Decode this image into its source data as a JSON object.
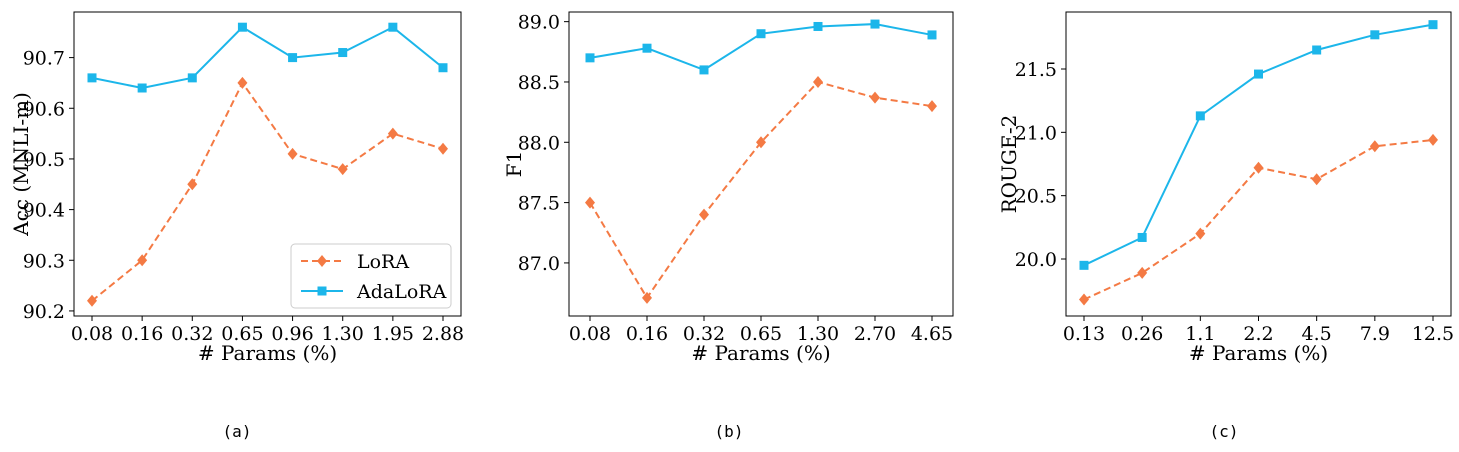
{
  "colors": {
    "lora": "#f47a44",
    "adalora": "#1cb6ea",
    "axis": "#000000"
  },
  "chart_data": [
    {
      "type": "line",
      "caption": "(a)",
      "xlabel": "# Params (%)",
      "ylabel": "Acc (MNLI-m)",
      "categories": [
        "0.08",
        "0.16",
        "0.32",
        "0.65",
        "0.96",
        "1.30",
        "1.95",
        "2.88"
      ],
      "ylim": [
        90.19,
        90.79
      ],
      "yticks": [
        90.2,
        90.3,
        90.4,
        90.5,
        90.6,
        90.7
      ],
      "ytick_labels": [
        "90.2",
        "90.3",
        "90.4",
        "90.5",
        "90.6",
        "90.7"
      ],
      "legend": {
        "location": "lower-right",
        "entries": [
          "LoRA",
          "AdaLoRA"
        ]
      },
      "series": [
        {
          "name": "LoRA",
          "style": "dashed",
          "marker": "diamond",
          "color": "#f47a44",
          "values": [
            90.22,
            90.3,
            90.45,
            90.65,
            90.51,
            90.48,
            90.55,
            90.52
          ]
        },
        {
          "name": "AdaLoRA",
          "style": "solid",
          "marker": "square",
          "color": "#1cb6ea",
          "values": [
            90.66,
            90.64,
            90.66,
            90.76,
            90.7,
            90.71,
            90.76,
            90.68
          ]
        }
      ]
    },
    {
      "type": "line",
      "caption": "(b)",
      "xlabel": "# Params (%)",
      "ylabel": "F1",
      "categories": [
        "0.08",
        "0.16",
        "0.32",
        "0.65",
        "1.30",
        "2.70",
        "4.65"
      ],
      "ylim": [
        86.56,
        89.08
      ],
      "yticks": [
        87.0,
        87.5,
        88.0,
        88.5,
        89.0
      ],
      "ytick_labels": [
        "87.0",
        "87.5",
        "88.0",
        "88.5",
        "89.0"
      ],
      "series": [
        {
          "name": "LoRA",
          "style": "dashed",
          "marker": "diamond",
          "color": "#f47a44",
          "values": [
            87.5,
            86.71,
            87.4,
            88.0,
            88.5,
            88.37,
            88.3
          ]
        },
        {
          "name": "AdaLoRA",
          "style": "solid",
          "marker": "square",
          "color": "#1cb6ea",
          "values": [
            88.7,
            88.78,
            88.6,
            88.9,
            88.96,
            88.98,
            88.89
          ]
        }
      ]
    },
    {
      "type": "line",
      "caption": "(c)",
      "xlabel": "# Params (%)",
      "ylabel": "ROUGE-2",
      "categories": [
        "0.13",
        "0.26",
        "1.1",
        "2.2",
        "4.5",
        "7.9",
        "12.5"
      ],
      "ylim": [
        19.55,
        21.95
      ],
      "yticks": [
        20.0,
        20.5,
        21.0,
        21.5
      ],
      "ytick_labels": [
        "20.0",
        "20.5",
        "21.0",
        "21.5"
      ],
      "series": [
        {
          "name": "LoRA",
          "style": "dashed",
          "marker": "diamond",
          "color": "#f47a44",
          "values": [
            19.68,
            19.89,
            20.2,
            20.72,
            20.63,
            20.89,
            20.94
          ]
        },
        {
          "name": "AdaLoRA",
          "style": "solid",
          "marker": "square",
          "color": "#1cb6ea",
          "values": [
            19.95,
            20.17,
            21.13,
            21.46,
            21.65,
            21.77,
            21.85
          ]
        }
      ]
    }
  ]
}
